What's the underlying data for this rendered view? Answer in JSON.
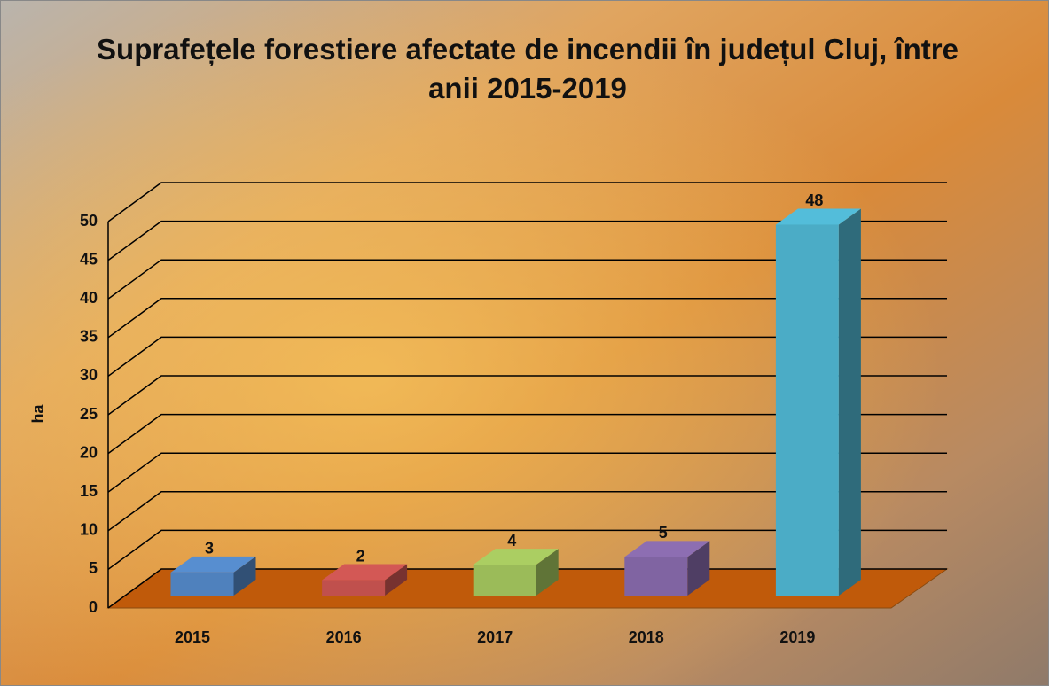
{
  "chart_data": {
    "type": "bar3d",
    "title": "Suprafețele forestiere afectate de incendii în județul Cluj, între anii 2015-2019",
    "y_label": "ha",
    "categories": [
      "2015",
      "2016",
      "2017",
      "2018",
      "2019"
    ],
    "values": [
      3,
      2,
      4,
      5,
      48
    ],
    "colors": [
      "#4f81bd",
      "#c0504d",
      "#9bbb59",
      "#8064a2",
      "#4bacc6"
    ],
    "floor_color": "#c05a0a",
    "ylim": [
      0,
      50
    ],
    "yticks": [
      0,
      5,
      10,
      15,
      20,
      25,
      30,
      35,
      40,
      45,
      50
    ],
    "grid": true
  }
}
